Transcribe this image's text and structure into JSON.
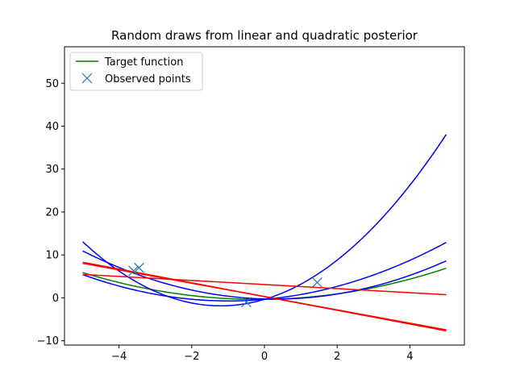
{
  "chart_data": {
    "type": "line",
    "title": "Random draws from linear and quadratic posterior",
    "xlabel": "",
    "ylabel": "",
    "xlim": [
      -5.5,
      5.5
    ],
    "ylim": [
      -11,
      58.5
    ],
    "x_ticks": [
      -4,
      -2,
      0,
      2,
      4
    ],
    "y_ticks": [
      -10,
      0,
      10,
      20,
      30,
      40,
      50
    ],
    "x_domain": [
      -5,
      5
    ],
    "legend": {
      "position": "top-left",
      "entries": [
        {
          "label": "Target function",
          "marker": "line",
          "color": "#008000"
        },
        {
          "label": "Observed points",
          "marker": "x",
          "color": "#1f77b4"
        }
      ]
    },
    "series": [
      {
        "name": "Target function",
        "kind": "quadratic",
        "coefficients": [
          0.27,
          0.1,
          -0.35
        ],
        "color": "#008000"
      },
      {
        "name": "Quadratic draw 1",
        "kind": "quadratic",
        "coefficients": [
          1.037,
          2.5,
          -0.35
        ],
        "color": "#0000ff"
      },
      {
        "name": "Quadratic draw 2",
        "kind": "quadratic",
        "coefficients": [
          0.381,
          0.75,
          -0.35
        ],
        "color": "#0000ff"
      },
      {
        "name": "Quadratic draw 3",
        "kind": "quadratic",
        "coefficients": [
          0.401,
          -0.23,
          -0.25
        ],
        "color": "#0000ff"
      },
      {
        "name": "Linear draw 1",
        "kind": "linear",
        "coefficients": [
          -1.6,
          0.3
        ],
        "color": "#ff0000"
      },
      {
        "name": "Linear draw 2",
        "kind": "linear",
        "coefficients": [
          -1.55,
          0.3
        ],
        "color": "#ff0000"
      },
      {
        "name": "Linear draw 3",
        "kind": "linear",
        "coefficients": [
          -0.47,
          3.1
        ],
        "color": "#ff0000"
      }
    ],
    "observed_points": {
      "name": "Observed points",
      "color": "#1f77b4",
      "x": [
        -3.6,
        -3.45,
        -0.5,
        1.45
      ],
      "y": [
        6.3,
        7.0,
        -1.0,
        3.6
      ]
    }
  }
}
